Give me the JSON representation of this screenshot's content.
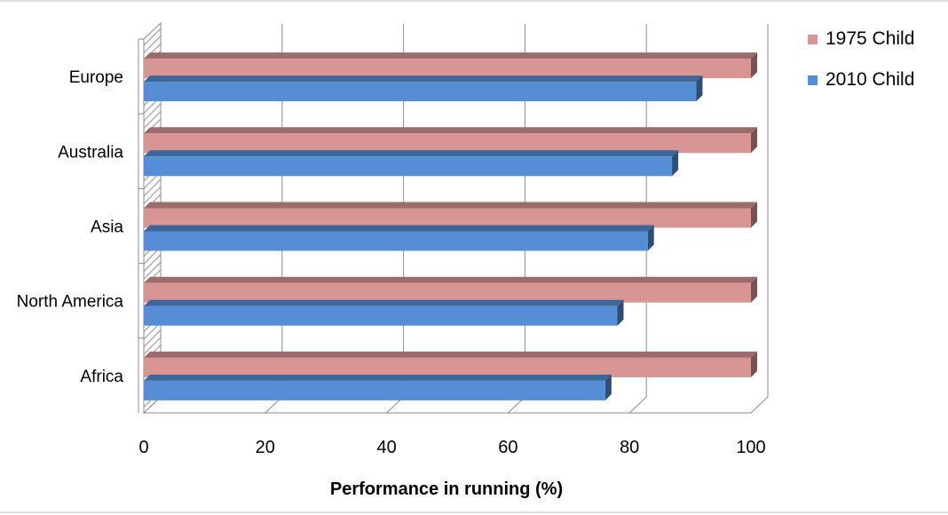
{
  "chart_data": {
    "type": "bar",
    "orientation": "horizontal",
    "style": "3d",
    "categories": [
      "Europe",
      "Australia",
      "Asia",
      "North America",
      "Africa"
    ],
    "series": [
      {
        "name": "1975 Child",
        "values": [
          100,
          100,
          100,
          100,
          100
        ],
        "color": "#d99594"
      },
      {
        "name": "2010 Child",
        "values": [
          91,
          87,
          83,
          78,
          76
        ],
        "color": "#558ed5"
      }
    ],
    "xlabel": "Performance in running (%)",
    "ylabel": "",
    "xlim": [
      0,
      100
    ],
    "xticks": [
      0,
      20,
      40,
      60,
      80,
      100
    ],
    "grid": true,
    "legend": "top-right"
  }
}
